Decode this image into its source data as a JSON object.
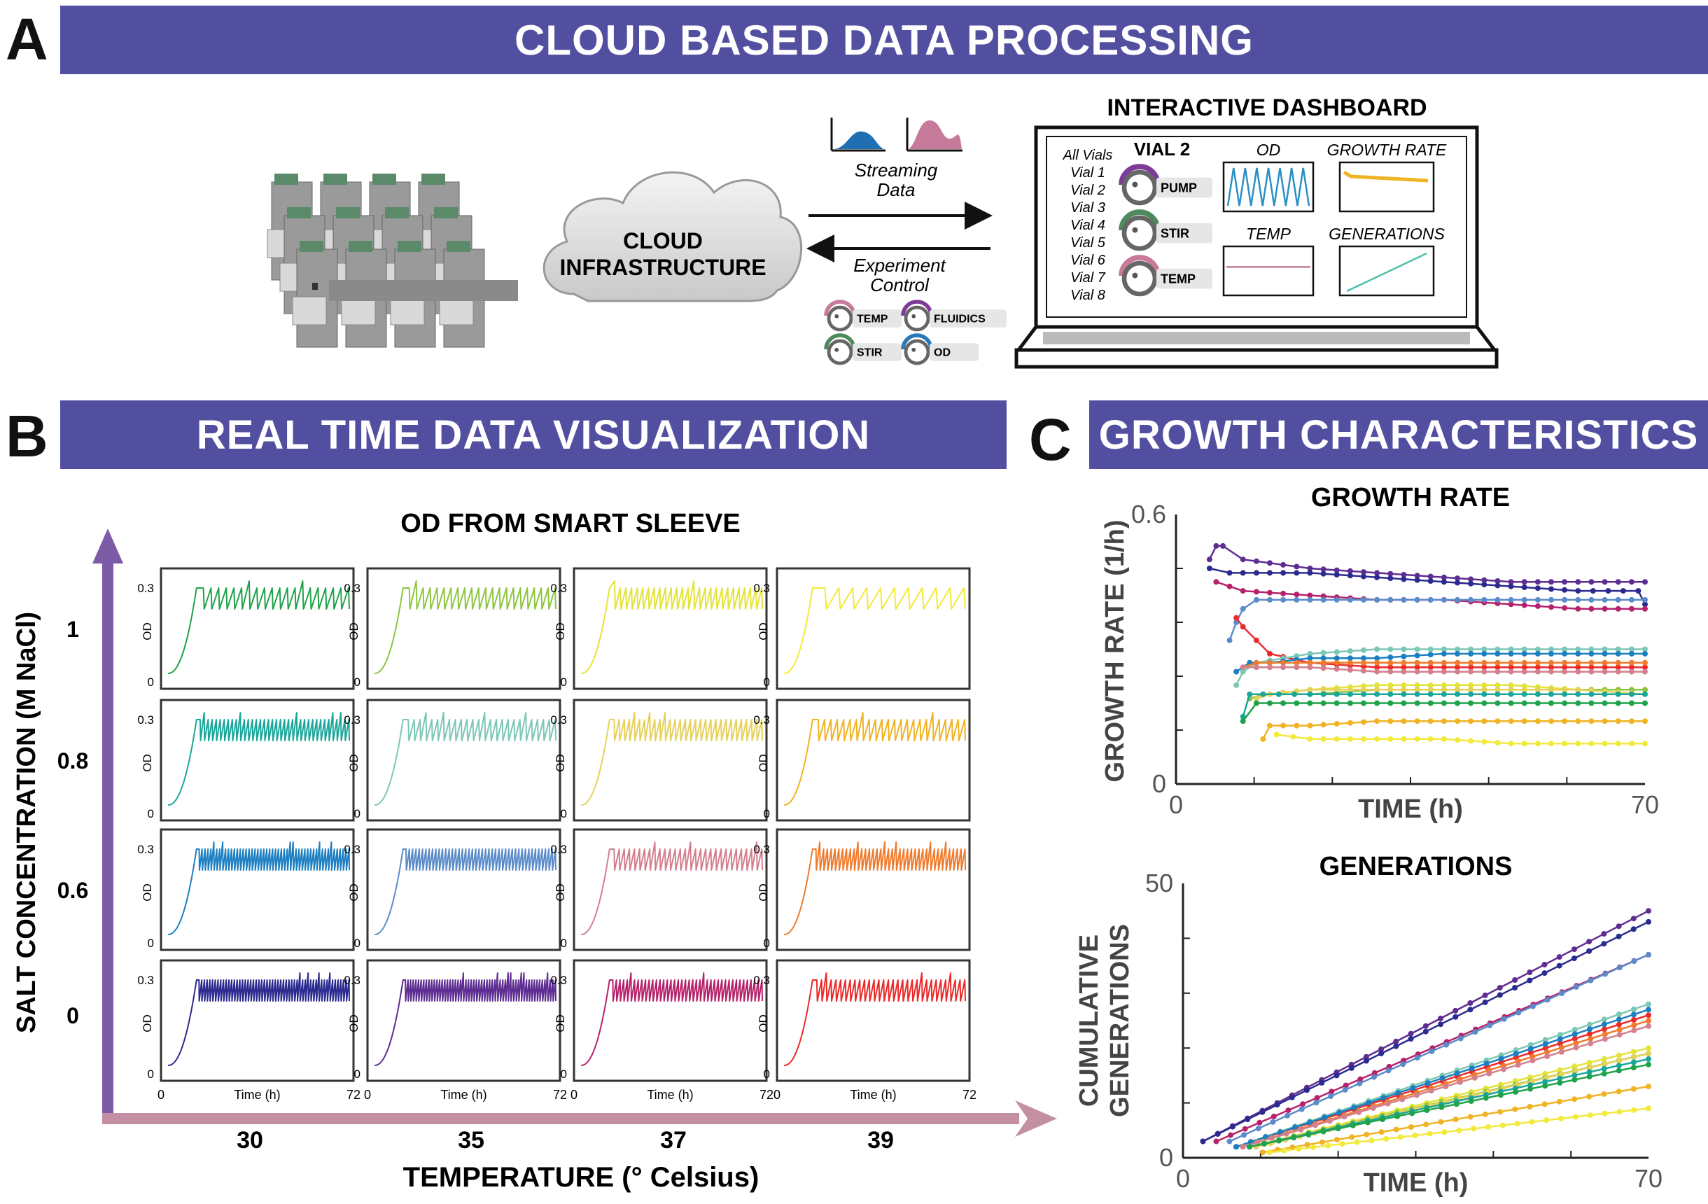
{
  "panel_a": {
    "letter": "A",
    "title": "CLOUD BASED DATA PROCESSING",
    "cloud": {
      "line1": "CLOUD",
      "line2": "INFRASTRUCTURE"
    },
    "streaming": {
      "line1": "Streaming",
      "line2": "Data"
    },
    "control": {
      "line1": "Experiment",
      "line2": "Control"
    },
    "control_knobs": [
      {
        "label": "TEMP",
        "color": "#c77a99"
      },
      {
        "label": "FLUIDICS",
        "color": "#7d3c98"
      },
      {
        "label": "STIR",
        "color": "#4f8a5e"
      },
      {
        "label": "OD",
        "color": "#2a7ab8"
      }
    ],
    "dashboard": {
      "title": "INTERACTIVE DASHBOARD",
      "vial_title": "VIAL 2",
      "vial_list": [
        "All Vials",
        "Vial 1",
        "Vial 2",
        "Vial 3",
        "Vial 4",
        "Vial 5",
        "Vial 6",
        "Vial 7",
        "Vial 8"
      ],
      "knobs": [
        {
          "label": "PUMP",
          "color": "#7d3c98"
        },
        {
          "label": "STIR",
          "color": "#4f8a5e"
        },
        {
          "label": "TEMP",
          "color": "#c77a99"
        }
      ],
      "mini_plots": [
        {
          "label": "OD",
          "color": "#2a8fc4",
          "kind": "sawtooth"
        },
        {
          "label": "GROWTH RATE",
          "color": "#f0b323",
          "kind": "flat-high"
        },
        {
          "label": "TEMP",
          "color": "#c77a99",
          "kind": "flat-mid"
        },
        {
          "label": "GENERATIONS",
          "color": "#4bbfae",
          "kind": "ramp"
        }
      ]
    }
  },
  "panel_b": {
    "letter": "B",
    "title": "REAL TIME DATA VISUALIZATION",
    "subtitle": "OD FROM SMART SLEEVE",
    "y_axis_label": "SALT CONCENTRATION (M NaCl)",
    "x_axis_label": "TEMPERATURE (° Celsius)",
    "salt_levels": [
      "1",
      "0.8",
      "0.6",
      "0"
    ],
    "temperatures": [
      "30",
      "35",
      "37",
      "39"
    ],
    "panel_ylabel": "OD",
    "panel_xlabel": "Time (h)",
    "tick_labels": {
      "y_top": "0.3",
      "y_bottom": "0",
      "x_left": "0",
      "x_right": "72"
    },
    "grid_colors": [
      [
        "#1fa24a",
        "#8cc63e",
        "#e4e33a",
        "#f1ea3a"
      ],
      [
        "#1aa69a",
        "#7cc7b6",
        "#e6d15a",
        "#f0b323"
      ],
      [
        "#1d7fc1",
        "#5b8bc8",
        "#d47f8e",
        "#f07b2d"
      ],
      [
        "#2b2a8f",
        "#5e2d91",
        "#b5226b",
        "#ec2a2a"
      ]
    ],
    "grid_periods": [
      [
        20,
        22,
        27,
        11
      ],
      [
        38,
        26,
        30,
        24
      ],
      [
        52,
        46,
        30,
        40
      ],
      [
        56,
        58,
        42,
        32
      ]
    ]
  },
  "panel_c": {
    "letter": "C",
    "title": "GROWTH CHARACTERISTICS"
  },
  "chart_data": [
    {
      "type": "line",
      "title": "GROWTH RATE",
      "xlabel": "TIME (h)",
      "ylabel": "GROWTH RATE (1/h)",
      "xlim": [
        0,
        70
      ],
      "ylim": [
        0,
        0.6
      ],
      "x_ticks": [
        "0",
        "70"
      ],
      "y_ticks": [
        "0",
        "0.6"
      ],
      "series": [
        {
          "color": "#5e2d91",
          "x": [
            5,
            6,
            7,
            10,
            20,
            30,
            40,
            50,
            60,
            70
          ],
          "values": [
            0.5,
            0.53,
            0.53,
            0.5,
            0.48,
            0.47,
            0.46,
            0.45,
            0.45,
            0.45
          ]
        },
        {
          "color": "#2b2a8f",
          "x": [
            5,
            8,
            12,
            20,
            30,
            40,
            50,
            60,
            69,
            70
          ],
          "values": [
            0.48,
            0.47,
            0.47,
            0.47,
            0.46,
            0.45,
            0.44,
            0.43,
            0.43,
            0.4
          ]
        },
        {
          "color": "#b5226b",
          "x": [
            6,
            10,
            20,
            30,
            40,
            50,
            60,
            70
          ],
          "values": [
            0.45,
            0.43,
            0.42,
            0.41,
            0.41,
            0.4,
            0.39,
            0.39
          ]
        },
        {
          "color": "#5b8bc8",
          "x": [
            8,
            9,
            10,
            12,
            20,
            30,
            40,
            50,
            60,
            70
          ],
          "values": [
            0.32,
            0.36,
            0.39,
            0.41,
            0.41,
            0.41,
            0.41,
            0.41,
            0.41,
            0.41
          ]
        },
        {
          "color": "#ec2a2a",
          "x": [
            9,
            10,
            12,
            14,
            20,
            30,
            40,
            50,
            60,
            70
          ],
          "values": [
            0.37,
            0.35,
            0.32,
            0.29,
            0.27,
            0.26,
            0.26,
            0.26,
            0.26,
            0.26
          ]
        },
        {
          "color": "#7cc7b6",
          "x": [
            9,
            10,
            12,
            20,
            30,
            40,
            50,
            60,
            70
          ],
          "values": [
            0.22,
            0.25,
            0.27,
            0.29,
            0.3,
            0.3,
            0.3,
            0.3,
            0.3
          ]
        },
        {
          "color": "#1d7fc1",
          "x": [
            9,
            11,
            14,
            20,
            30,
            40,
            50,
            60,
            70
          ],
          "values": [
            0.25,
            0.27,
            0.27,
            0.28,
            0.28,
            0.29,
            0.29,
            0.29,
            0.29
          ]
        },
        {
          "color": "#f07b2d",
          "x": [
            10,
            12,
            20,
            30,
            40,
            50,
            60,
            70
          ],
          "values": [
            0.26,
            0.27,
            0.27,
            0.27,
            0.27,
            0.27,
            0.27,
            0.27
          ]
        },
        {
          "color": "#d47f8e",
          "x": [
            10,
            12,
            20,
            30,
            40,
            50,
            60,
            70
          ],
          "values": [
            0.26,
            0.26,
            0.26,
            0.25,
            0.25,
            0.25,
            0.25,
            0.25
          ]
        },
        {
          "color": "#e4e33a",
          "x": [
            12,
            14,
            20,
            30,
            40,
            50,
            60,
            70
          ],
          "values": [
            0.19,
            0.2,
            0.21,
            0.22,
            0.22,
            0.22,
            0.21,
            0.21
          ]
        },
        {
          "color": "#8cc63e",
          "x": [
            11,
            13,
            20,
            30,
            40,
            50,
            60,
            70
          ],
          "values": [
            0.19,
            0.2,
            0.2,
            0.21,
            0.21,
            0.21,
            0.21,
            0.21
          ]
        },
        {
          "color": "#e6d15a",
          "x": [
            12,
            14,
            20,
            30,
            40,
            50,
            60,
            70
          ],
          "values": [
            0.19,
            0.2,
            0.21,
            0.21,
            0.21,
            0.21,
            0.21,
            0.2
          ]
        },
        {
          "color": "#1aa69a",
          "x": [
            10,
            11,
            13,
            20,
            30,
            40,
            50,
            60,
            70
          ],
          "values": [
            0.15,
            0.2,
            0.2,
            0.2,
            0.2,
            0.2,
            0.2,
            0.2,
            0.2
          ]
        },
        {
          "color": "#1fa24a",
          "x": [
            10,
            12,
            14,
            20,
            30,
            40,
            50,
            60,
            70
          ],
          "values": [
            0.14,
            0.18,
            0.18,
            0.18,
            0.18,
            0.18,
            0.18,
            0.18,
            0.18
          ]
        },
        {
          "color": "#f0b323",
          "x": [
            13,
            14,
            20,
            30,
            40,
            50,
            60,
            70
          ],
          "values": [
            0.1,
            0.13,
            0.13,
            0.14,
            0.14,
            0.14,
            0.14,
            0.14
          ]
        },
        {
          "color": "#f1ea3a",
          "x": [
            15,
            20,
            30,
            40,
            50,
            60,
            70
          ],
          "values": [
            0.11,
            0.1,
            0.1,
            0.1,
            0.09,
            0.09,
            0.09
          ]
        }
      ]
    },
    {
      "type": "line",
      "title": "GENERATIONS",
      "xlabel": "TIME (h)",
      "ylabel": "CUMULATIVE GENERATIONS",
      "xlim": [
        0,
        70
      ],
      "ylim": [
        0,
        50
      ],
      "x_ticks": [
        "0",
        "70"
      ],
      "y_ticks": [
        "0",
        "50"
      ],
      "series": [
        {
          "color": "#5e2d91",
          "x": [
            3,
            70
          ],
          "values": [
            3,
            45
          ]
        },
        {
          "color": "#2b2a8f",
          "x": [
            3,
            70
          ],
          "values": [
            3,
            43
          ]
        },
        {
          "color": "#b5226b",
          "x": [
            5,
            70
          ],
          "values": [
            3,
            37
          ]
        },
        {
          "color": "#5b8bc8",
          "x": [
            7,
            70
          ],
          "values": [
            3,
            37
          ]
        },
        {
          "color": "#ec2a2a",
          "x": [
            8,
            70
          ],
          "values": [
            2,
            26
          ]
        },
        {
          "color": "#7cc7b6",
          "x": [
            8,
            70
          ],
          "values": [
            2,
            28
          ]
        },
        {
          "color": "#1d7fc1",
          "x": [
            8,
            70
          ],
          "values": [
            2,
            27
          ]
        },
        {
          "color": "#f07b2d",
          "x": [
            9,
            70
          ],
          "values": [
            2,
            25
          ]
        },
        {
          "color": "#d47f8e",
          "x": [
            9,
            70
          ],
          "values": [
            2,
            24
          ]
        },
        {
          "color": "#e4e33a",
          "x": [
            10,
            70
          ],
          "values": [
            2,
            20
          ]
        },
        {
          "color": "#8cc63e",
          "x": [
            10,
            70
          ],
          "values": [
            2,
            19
          ]
        },
        {
          "color": "#e6d15a",
          "x": [
            11,
            70
          ],
          "values": [
            2,
            19
          ]
        },
        {
          "color": "#1aa69a",
          "x": [
            10,
            70
          ],
          "values": [
            2,
            18
          ]
        },
        {
          "color": "#1fa24a",
          "x": [
            10,
            70
          ],
          "values": [
            2,
            17
          ]
        },
        {
          "color": "#f0b323",
          "x": [
            12,
            70
          ],
          "values": [
            1,
            13
          ]
        },
        {
          "color": "#f1ea3a",
          "x": [
            13,
            70
          ],
          "values": [
            1,
            9
          ]
        }
      ]
    }
  ]
}
